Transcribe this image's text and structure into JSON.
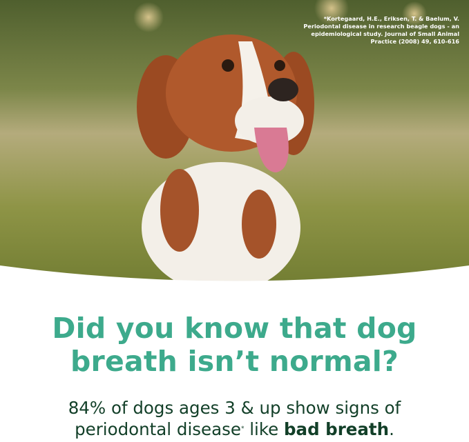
{
  "citation": "*Kortegaard, H.E., Eriksen, T. & Baelum, V. Periodontal disease in research beagle dogs - an epidemiological study. Journal of Small Animal Practice (2008) 49, 610-616",
  "headline": {
    "line1": "Did you know that dog",
    "line2": "breath isn’t normal?"
  },
  "subtext": {
    "line1": "84% of dogs ages 3 & up show signs of",
    "line2_start": "periodontal disease",
    "asterisk": "*",
    "line2_middle": " like ",
    "line2_bold": "bad breath",
    "line2_end": "."
  },
  "colors": {
    "headline": "#3daa8c",
    "subtext": "#123f28"
  }
}
